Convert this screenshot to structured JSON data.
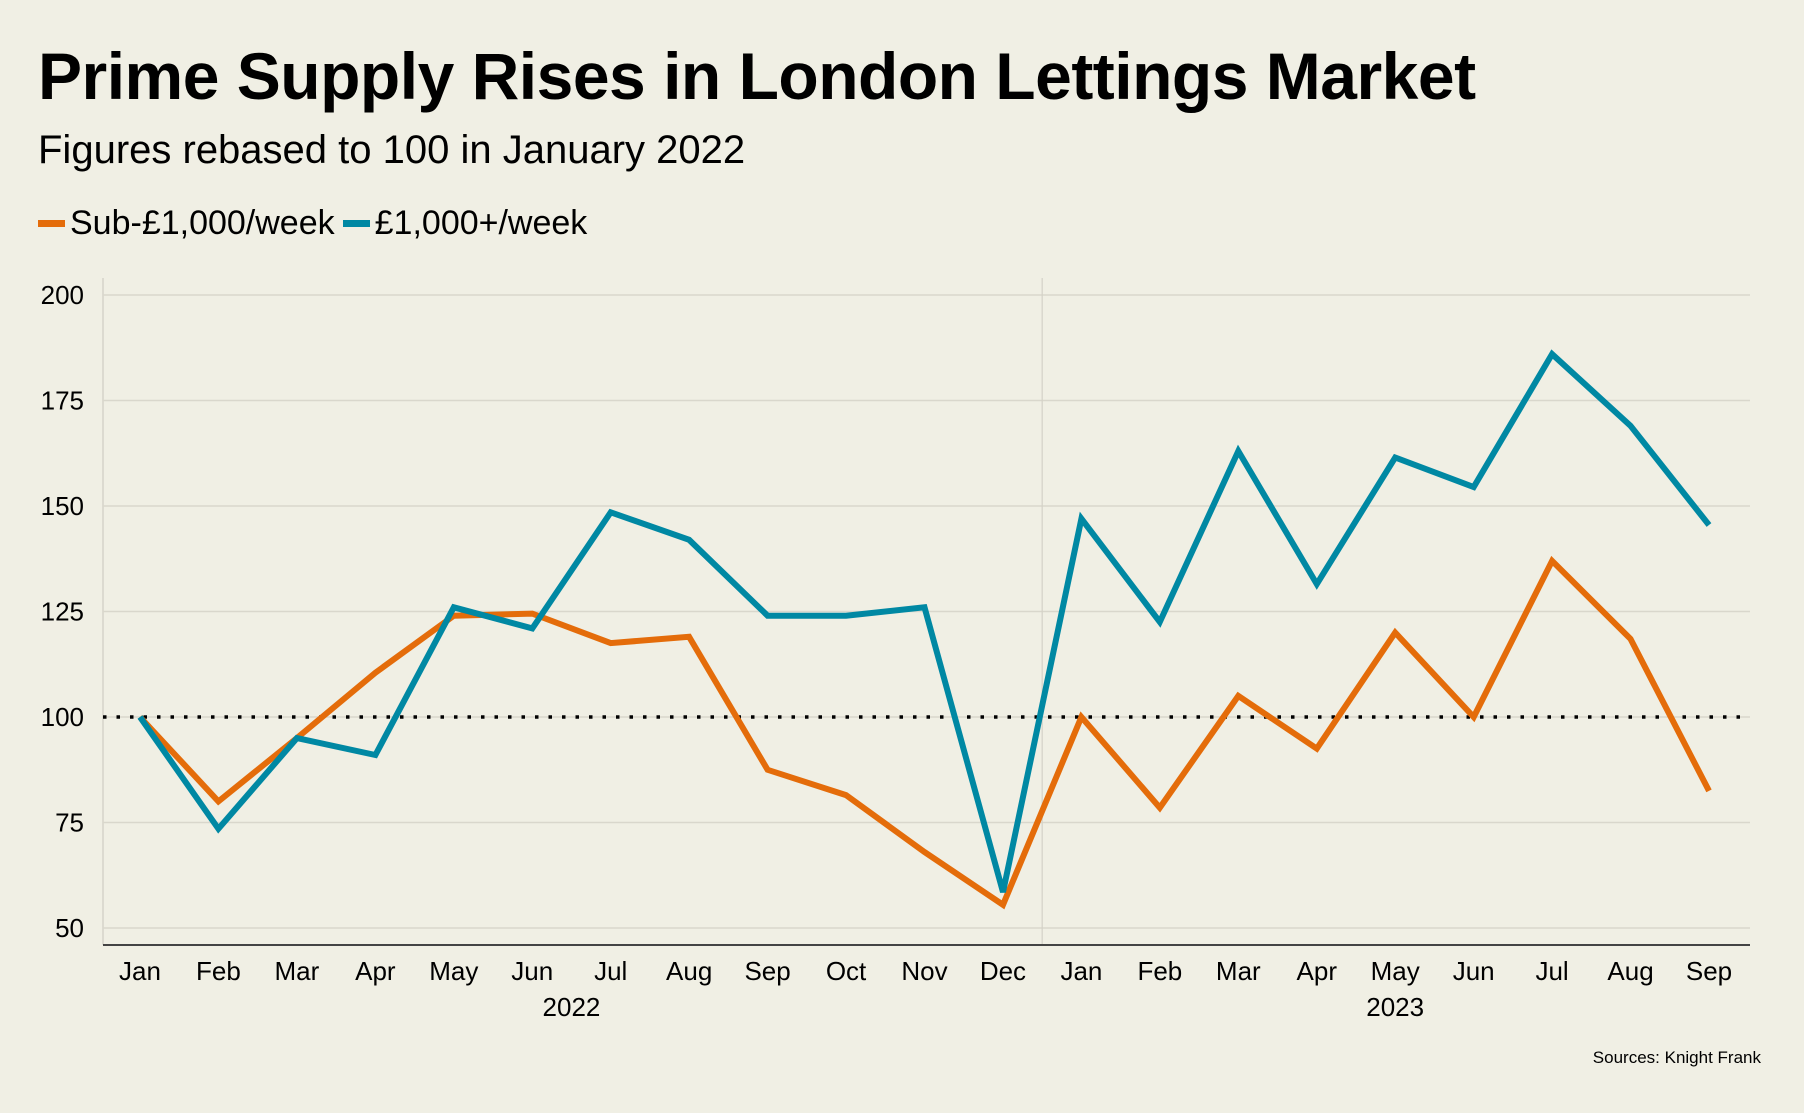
{
  "title": "Prime Supply Rises in London Lettings Market",
  "subtitle": "Figures rebased to 100 in January 2022",
  "source": "Sources: Knight Frank",
  "chart_data": {
    "type": "line",
    "title": "Prime Supply Rises in London Lettings Market",
    "subtitle": "Figures rebased to 100 in January 2022",
    "xlabel": "",
    "ylabel": "",
    "ylim": [
      50,
      200
    ],
    "yticks": [
      50,
      75,
      100,
      125,
      150,
      175,
      200
    ],
    "grid": true,
    "legend_position": "top-left",
    "reference_line": {
      "value": 100,
      "style": "dotted"
    },
    "categories": [
      "Jan",
      "Feb",
      "Mar",
      "Apr",
      "May",
      "Jun",
      "Jul",
      "Aug",
      "Sep",
      "Oct",
      "Nov",
      "Dec",
      "Jan",
      "Feb",
      "Mar",
      "Apr",
      "May",
      "Jun",
      "Jul",
      "Aug",
      "Sep"
    ],
    "year_groups": [
      {
        "label": "2022",
        "start": 0,
        "end": 11
      },
      {
        "label": "2023",
        "start": 12,
        "end": 20
      }
    ],
    "series": [
      {
        "name": "Sub-£1,000/week",
        "color": "#e46c0a",
        "values": [
          100,
          80,
          95,
          110.5,
          124,
          124.5,
          117.5,
          119,
          87.5,
          81.5,
          68,
          55.5,
          100,
          78.5,
          105,
          92.5,
          120,
          100,
          137,
          118.5,
          82.5
        ]
      },
      {
        "name": "£1,000+/week",
        "color": "#0088a3",
        "values": [
          100,
          73.5,
          95,
          91,
          126,
          121,
          148.5,
          142,
          124,
          124,
          126,
          58.5,
          147,
          122.5,
          163,
          131.5,
          161.5,
          154.5,
          186,
          169,
          145.5
        ]
      }
    ]
  }
}
